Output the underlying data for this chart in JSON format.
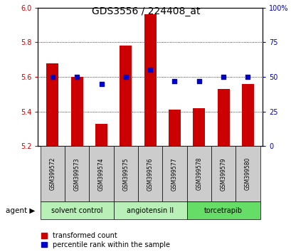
{
  "title": "GDS3556 / 224408_at",
  "samples": [
    "GSM399572",
    "GSM399573",
    "GSM399574",
    "GSM399575",
    "GSM399576",
    "GSM399577",
    "GSM399578",
    "GSM399579",
    "GSM399580"
  ],
  "transformed_counts": [
    5.68,
    5.6,
    5.33,
    5.78,
    5.96,
    5.41,
    5.42,
    5.53,
    5.56
  ],
  "percentile_ranks": [
    50,
    50,
    45,
    50,
    55,
    47,
    47,
    50,
    50
  ],
  "bar_bottom": 5.2,
  "ylim_left": [
    5.2,
    6.0
  ],
  "ylim_right": [
    0,
    100
  ],
  "yticks_left": [
    5.2,
    5.4,
    5.6,
    5.8,
    6.0
  ],
  "yticks_right": [
    0,
    25,
    50,
    75,
    100
  ],
  "yticklabels_right": [
    "0",
    "25",
    "50",
    "75",
    "100%"
  ],
  "bar_color": "#cc0000",
  "dot_color": "#0000cc",
  "group_data": [
    {
      "start": 0,
      "end": 2,
      "label": "solvent control",
      "color": "#b8f0b8"
    },
    {
      "start": 3,
      "end": 5,
      "label": "angiotensin II",
      "color": "#b8f0b8"
    },
    {
      "start": 6,
      "end": 8,
      "label": "torcetrapib",
      "color": "#66dd66"
    }
  ],
  "legend_items": [
    {
      "label": "transformed count",
      "color": "#cc0000"
    },
    {
      "label": "percentile rank within the sample",
      "color": "#0000cc"
    }
  ],
  "bar_width": 0.5,
  "fig_width": 4.1,
  "fig_height": 3.54,
  "dpi": 100
}
